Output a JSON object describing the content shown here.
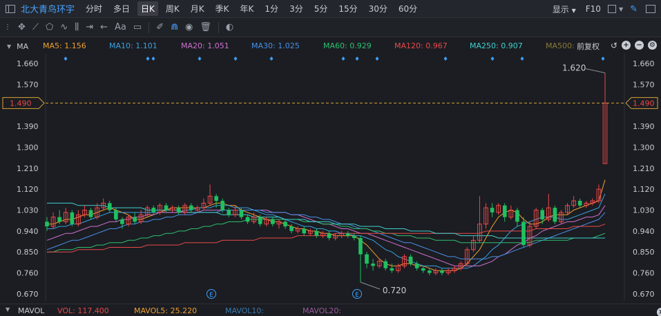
{
  "topbar": {
    "stock_name": "北大青鸟环宇",
    "periods": [
      "分时",
      "多日",
      "日K",
      "周K",
      "月K",
      "季K",
      "年K",
      "1分",
      "3分",
      "5分",
      "15分",
      "30分",
      "60分"
    ],
    "active_period": "日K",
    "display_label": "显示",
    "f10_label": "F10"
  },
  "ma_bar": {
    "title": "MA",
    "adjust_label": "前复权",
    "items": [
      {
        "label": "MA5: 1.156",
        "color": "#f0a030"
      },
      {
        "label": "MA10: 1.101",
        "color": "#3ba0e0"
      },
      {
        "label": "MA20: 1.051",
        "color": "#d070d0"
      },
      {
        "label": "MA30: 1.025",
        "color": "#4a90e8"
      },
      {
        "label": "MA60: 0.929",
        "color": "#30c070"
      },
      {
        "label": "MA120: 0.967",
        "color": "#e84a4a"
      },
      {
        "label": "MA250: 0.907",
        "color": "#40d0d0"
      },
      {
        "label": "MA500:",
        "color": "#8a7a3a"
      }
    ]
  },
  "price_axis": {
    "ticks": [
      "1.660",
      "1.570",
      "1.480",
      "1.390",
      "1.300",
      "1.210",
      "1.120",
      "1.030",
      "0.940",
      "0.850",
      "0.760",
      "0.670"
    ],
    "crosshair_label": "1.490"
  },
  "annotations": {
    "high_label": "1.620",
    "low_label": "0.720",
    "event_marker": "E"
  },
  "vol_bar": {
    "title": "MAVOL",
    "vol": "VOL: 117.400",
    "mavol5": "MAVOL5: 25.220",
    "mavol10": "MAVOL10:",
    "mavol20": "MAVOL20:"
  },
  "chart_data": {
    "type": "candlestick",
    "yrange": [
      0.64,
      1.69
    ],
    "grid": false,
    "candles": [
      [
        0.98,
        0.96,
        1.0,
        0.94
      ],
      [
        0.96,
        1.0,
        1.02,
        0.95
      ],
      [
        1.0,
        0.98,
        1.03,
        0.97
      ],
      [
        0.98,
        1.02,
        1.04,
        0.97
      ],
      [
        1.02,
        0.97,
        1.03,
        0.96
      ],
      [
        0.97,
        1.01,
        1.03,
        0.96
      ],
      [
        1.01,
        1.03,
        1.05,
        1.0
      ],
      [
        1.03,
        1.0,
        1.04,
        0.99
      ],
      [
        1.0,
        1.04,
        1.06,
        0.99
      ],
      [
        1.04,
        1.06,
        1.08,
        1.03
      ],
      [
        1.06,
        1.03,
        1.07,
        1.02
      ],
      [
        1.03,
        0.99,
        1.04,
        0.98
      ],
      [
        0.99,
        0.97,
        1.0,
        0.95
      ],
      [
        0.97,
        1.0,
        1.01,
        0.96
      ],
      [
        1.0,
        0.98,
        1.02,
        0.97
      ],
      [
        0.98,
        1.01,
        1.03,
        0.97
      ],
      [
        1.01,
        1.04,
        1.05,
        1.0
      ],
      [
        1.04,
        1.02,
        1.05,
        1.01
      ],
      [
        1.02,
        1.05,
        1.06,
        1.01
      ],
      [
        1.05,
        1.03,
        1.06,
        1.02
      ],
      [
        1.03,
        1.04,
        1.05,
        1.02
      ],
      [
        1.04,
        1.02,
        1.05,
        1.01
      ],
      [
        1.02,
        1.05,
        1.06,
        1.01
      ],
      [
        1.05,
        1.03,
        1.06,
        1.02
      ],
      [
        1.03,
        1.04,
        1.05,
        1.02
      ],
      [
        1.04,
        1.06,
        1.08,
        1.03
      ],
      [
        1.06,
        1.09,
        1.14,
        1.05
      ],
      [
        1.09,
        1.07,
        1.1,
        1.04
      ],
      [
        1.07,
        1.03,
        1.08,
        1.02
      ],
      [
        1.03,
        1.01,
        1.04,
        1.0
      ],
      [
        1.01,
        1.03,
        1.05,
        1.0
      ],
      [
        1.03,
        1.0,
        1.04,
        0.99
      ],
      [
        1.0,
        0.98,
        1.01,
        0.97
      ],
      [
        0.98,
        1.0,
        1.02,
        0.97
      ],
      [
        1.0,
        0.97,
        1.01,
        0.96
      ],
      [
        0.97,
        0.99,
        1.0,
        0.96
      ],
      [
        0.99,
        0.97,
        1.0,
        0.96
      ],
      [
        0.97,
        0.98,
        0.99,
        0.95
      ],
      [
        0.98,
        0.96,
        0.99,
        0.95
      ],
      [
        0.96,
        0.94,
        0.97,
        0.93
      ],
      [
        0.94,
        0.95,
        0.96,
        0.93
      ],
      [
        0.95,
        0.93,
        0.96,
        0.92
      ],
      [
        0.93,
        0.94,
        0.95,
        0.92
      ],
      [
        0.94,
        0.92,
        0.95,
        0.91
      ],
      [
        0.92,
        0.93,
        0.94,
        0.91
      ],
      [
        0.93,
        0.91,
        0.94,
        0.9
      ],
      [
        0.91,
        0.92,
        0.93,
        0.9
      ],
      [
        0.92,
        0.93,
        0.94,
        0.91
      ],
      [
        0.93,
        0.92,
        0.94,
        0.91
      ],
      [
        0.92,
        0.91,
        0.93,
        0.9
      ],
      [
        0.91,
        0.84,
        0.92,
        0.72
      ],
      [
        0.84,
        0.8,
        0.85,
        0.78
      ],
      [
        0.8,
        0.79,
        0.82,
        0.77
      ],
      [
        0.79,
        0.81,
        0.82,
        0.78
      ],
      [
        0.81,
        0.78,
        0.82,
        0.77
      ],
      [
        0.78,
        0.77,
        0.8,
        0.76
      ],
      [
        0.77,
        0.79,
        0.8,
        0.76
      ],
      [
        0.79,
        0.83,
        0.84,
        0.78
      ],
      [
        0.83,
        0.8,
        0.84,
        0.79
      ],
      [
        0.8,
        0.78,
        0.81,
        0.77
      ],
      [
        0.78,
        0.77,
        0.79,
        0.76
      ],
      [
        0.77,
        0.76,
        0.78,
        0.75
      ],
      [
        0.76,
        0.77,
        0.78,
        0.75
      ],
      [
        0.77,
        0.76,
        0.78,
        0.75
      ],
      [
        0.76,
        0.77,
        0.78,
        0.75
      ],
      [
        0.77,
        0.78,
        0.79,
        0.76
      ],
      [
        0.78,
        0.8,
        0.81,
        0.77
      ],
      [
        0.8,
        0.86,
        0.87,
        0.79
      ],
      [
        0.86,
        0.9,
        0.92,
        0.85
      ],
      [
        0.9,
        0.97,
        1.09,
        0.89
      ],
      [
        0.97,
        1.04,
        1.06,
        0.95
      ],
      [
        1.04,
        1.02,
        1.06,
        1.0
      ],
      [
        1.02,
        1.05,
        1.06,
        1.01
      ],
      [
        1.05,
        1.0,
        1.06,
        0.98
      ],
      [
        1.0,
        1.03,
        1.05,
        0.99
      ],
      [
        1.03,
        0.98,
        1.04,
        0.96
      ],
      [
        0.98,
        0.88,
        1.0,
        0.87
      ],
      [
        0.88,
        0.96,
        0.98,
        0.87
      ],
      [
        0.96,
        1.03,
        1.04,
        0.95
      ],
      [
        1.03,
        0.99,
        1.04,
        0.97
      ],
      [
        0.99,
        1.04,
        1.1,
        0.98
      ],
      [
        1.04,
        0.98,
        1.05,
        0.97
      ],
      [
        0.98,
        1.02,
        1.03,
        0.97
      ],
      [
        1.02,
        1.05,
        1.06,
        1.01
      ],
      [
        1.05,
        1.07,
        1.09,
        1.04
      ],
      [
        1.07,
        1.05,
        1.08,
        1.04
      ],
      [
        1.05,
        1.06,
        1.07,
        1.04
      ],
      [
        1.06,
        1.07,
        1.08,
        1.05
      ],
      [
        1.07,
        1.12,
        1.14,
        1.06
      ],
      [
        1.23,
        1.49,
        1.62,
        1.23
      ]
    ],
    "ma_lines": [
      {
        "name": "MA5",
        "color": "#f0a030",
        "values": [
          0.97,
          0.97,
          0.98,
          0.99,
          0.99,
          1.0,
          1.01,
          1.01,
          1.02,
          1.03,
          1.04,
          1.03,
          1.02,
          1.01,
          0.99,
          0.99,
          1.0,
          1.01,
          1.02,
          1.03,
          1.04,
          1.04,
          1.04,
          1.04,
          1.04,
          1.04,
          1.05,
          1.06,
          1.06,
          1.05,
          1.05,
          1.03,
          1.02,
          1.01,
          1.0,
          0.99,
          0.98,
          0.98,
          0.97,
          0.96,
          0.95,
          0.95,
          0.94,
          0.94,
          0.93,
          0.93,
          0.92,
          0.92,
          0.92,
          0.92,
          0.9,
          0.88,
          0.85,
          0.82,
          0.8,
          0.79,
          0.79,
          0.8,
          0.8,
          0.79,
          0.79,
          0.78,
          0.77,
          0.77,
          0.77,
          0.77,
          0.78,
          0.8,
          0.83,
          0.86,
          0.91,
          0.96,
          1.0,
          1.02,
          1.03,
          1.02,
          0.99,
          0.97,
          0.97,
          0.98,
          1.0,
          1.01,
          1.01,
          1.01,
          1.03,
          1.04,
          1.05,
          1.06,
          1.07,
          1.16
        ]
      },
      {
        "name": "MA10",
        "color": "#3ba0e0",
        "values": [
          0.95,
          0.95,
          0.96,
          0.96,
          0.97,
          0.97,
          0.98,
          0.99,
          1.0,
          1.01,
          1.02,
          1.02,
          1.02,
          1.02,
          1.02,
          1.02,
          1.02,
          1.02,
          1.02,
          1.02,
          1.02,
          1.02,
          1.03,
          1.03,
          1.04,
          1.04,
          1.04,
          1.05,
          1.05,
          1.05,
          1.04,
          1.04,
          1.04,
          1.03,
          1.02,
          1.01,
          1.01,
          1.0,
          0.99,
          0.98,
          0.97,
          0.96,
          0.96,
          0.95,
          0.95,
          0.94,
          0.94,
          0.93,
          0.93,
          0.92,
          0.92,
          0.91,
          0.9,
          0.88,
          0.86,
          0.85,
          0.83,
          0.82,
          0.81,
          0.8,
          0.79,
          0.79,
          0.79,
          0.78,
          0.78,
          0.78,
          0.78,
          0.78,
          0.79,
          0.81,
          0.83,
          0.86,
          0.88,
          0.91,
          0.94,
          0.96,
          0.97,
          0.98,
          0.99,
          1.0,
          1.0,
          1.0,
          0.99,
          0.99,
          1.0,
          1.01,
          1.02,
          1.03,
          1.04,
          1.1
        ]
      },
      {
        "name": "MA20",
        "color": "#d070d0",
        "values": [
          0.9,
          0.91,
          0.92,
          0.93,
          0.93,
          0.94,
          0.95,
          0.96,
          0.96,
          0.97,
          0.98,
          0.98,
          0.99,
          0.99,
          1.0,
          1.0,
          1.01,
          1.01,
          1.02,
          1.02,
          1.02,
          1.02,
          1.02,
          1.02,
          1.02,
          1.03,
          1.03,
          1.03,
          1.03,
          1.03,
          1.03,
          1.03,
          1.03,
          1.03,
          1.03,
          1.03,
          1.02,
          1.02,
          1.02,
          1.01,
          1.01,
          1.0,
          0.99,
          0.98,
          0.97,
          0.97,
          0.96,
          0.95,
          0.95,
          0.94,
          0.93,
          0.93,
          0.92,
          0.91,
          0.9,
          0.89,
          0.88,
          0.87,
          0.86,
          0.85,
          0.84,
          0.83,
          0.82,
          0.81,
          0.8,
          0.79,
          0.79,
          0.79,
          0.79,
          0.79,
          0.8,
          0.81,
          0.83,
          0.84,
          0.86,
          0.88,
          0.89,
          0.91,
          0.92,
          0.94,
          0.95,
          0.96,
          0.97,
          0.98,
          0.98,
          0.99,
          1.0,
          1.0,
          1.01,
          1.05
        ]
      },
      {
        "name": "MA30",
        "color": "#4a90e8",
        "values": [
          0.86,
          0.87,
          0.88,
          0.89,
          0.9,
          0.9,
          0.91,
          0.92,
          0.93,
          0.94,
          0.95,
          0.95,
          0.96,
          0.97,
          0.97,
          0.98,
          0.98,
          0.99,
          0.99,
          1.0,
          1.0,
          1.01,
          1.01,
          1.01,
          1.02,
          1.02,
          1.02,
          1.02,
          1.03,
          1.03,
          1.03,
          1.03,
          1.03,
          1.03,
          1.03,
          1.02,
          1.02,
          1.02,
          1.02,
          1.01,
          1.01,
          1.01,
          1.0,
          1.0,
          0.99,
          0.99,
          0.98,
          0.97,
          0.97,
          0.96,
          0.95,
          0.95,
          0.94,
          0.93,
          0.92,
          0.91,
          0.9,
          0.89,
          0.89,
          0.88,
          0.87,
          0.86,
          0.85,
          0.84,
          0.83,
          0.83,
          0.82,
          0.82,
          0.82,
          0.82,
          0.82,
          0.83,
          0.83,
          0.84,
          0.85,
          0.86,
          0.87,
          0.88,
          0.89,
          0.9,
          0.91,
          0.92,
          0.93,
          0.94,
          0.95,
          0.96,
          0.97,
          0.98,
          0.99,
          1.02
        ]
      },
      {
        "name": "MA60",
        "color": "#30c070",
        "values": [
          0.85,
          0.85,
          0.86,
          0.86,
          0.86,
          0.87,
          0.87,
          0.87,
          0.88,
          0.88,
          0.89,
          0.89,
          0.89,
          0.9,
          0.9,
          0.91,
          0.91,
          0.92,
          0.92,
          0.93,
          0.93,
          0.94,
          0.94,
          0.95,
          0.95,
          0.96,
          0.96,
          0.97,
          0.97,
          0.98,
          0.98,
          0.98,
          0.99,
          0.99,
          0.99,
          0.99,
          0.99,
          0.99,
          0.99,
          0.99,
          0.99,
          0.98,
          0.98,
          0.98,
          0.97,
          0.97,
          0.97,
          0.96,
          0.96,
          0.95,
          0.95,
          0.95,
          0.94,
          0.94,
          0.93,
          0.93,
          0.92,
          0.92,
          0.92,
          0.91,
          0.91,
          0.91,
          0.9,
          0.9,
          0.9,
          0.9,
          0.89,
          0.89,
          0.89,
          0.89,
          0.89,
          0.89,
          0.89,
          0.89,
          0.89,
          0.89,
          0.89,
          0.89,
          0.9,
          0.9,
          0.9,
          0.9,
          0.9,
          0.9,
          0.91,
          0.91,
          0.91,
          0.91,
          0.92,
          0.93
        ]
      },
      {
        "name": "MA120",
        "color": "#e84a4a",
        "values": [
          0.85,
          0.85,
          0.85,
          0.85,
          0.85,
          0.86,
          0.86,
          0.86,
          0.86,
          0.86,
          0.87,
          0.87,
          0.87,
          0.87,
          0.87,
          0.87,
          0.88,
          0.88,
          0.88,
          0.88,
          0.88,
          0.88,
          0.89,
          0.89,
          0.89,
          0.89,
          0.89,
          0.89,
          0.9,
          0.9,
          0.9,
          0.9,
          0.9,
          0.9,
          0.91,
          0.91,
          0.91,
          0.91,
          0.91,
          0.91,
          0.92,
          0.92,
          0.92,
          0.92,
          0.92,
          0.92,
          0.93,
          0.93,
          0.93,
          0.93,
          0.93,
          0.93,
          0.93,
          0.93,
          0.93,
          0.93,
          0.93,
          0.93,
          0.93,
          0.93,
          0.93,
          0.93,
          0.93,
          0.93,
          0.93,
          0.93,
          0.93,
          0.93,
          0.93,
          0.93,
          0.94,
          0.94,
          0.94,
          0.94,
          0.94,
          0.94,
          0.94,
          0.94,
          0.95,
          0.95,
          0.95,
          0.95,
          0.95,
          0.95,
          0.96,
          0.96,
          0.96,
          0.96,
          0.96,
          0.97
        ]
      },
      {
        "name": "MA250",
        "color": "#40d0d0",
        "values": [
          1.06,
          1.06,
          1.06,
          1.06,
          1.06,
          1.05,
          1.05,
          1.05,
          1.05,
          1.05,
          1.04,
          1.04,
          1.04,
          1.04,
          1.04,
          1.04,
          1.03,
          1.03,
          1.03,
          1.03,
          1.03,
          1.03,
          1.02,
          1.02,
          1.02,
          1.02,
          1.02,
          1.02,
          1.01,
          1.01,
          1.01,
          1.01,
          1.01,
          1.0,
          1.0,
          1.0,
          1.0,
          1.0,
          0.99,
          0.99,
          0.99,
          0.99,
          0.98,
          0.98,
          0.98,
          0.98,
          0.97,
          0.97,
          0.97,
          0.97,
          0.96,
          0.96,
          0.96,
          0.96,
          0.95,
          0.95,
          0.95,
          0.95,
          0.94,
          0.94,
          0.94,
          0.94,
          0.93,
          0.93,
          0.93,
          0.93,
          0.92,
          0.92,
          0.92,
          0.92,
          0.92,
          0.92,
          0.91,
          0.91,
          0.91,
          0.91,
          0.91,
          0.91,
          0.91,
          0.91,
          0.91,
          0.91,
          0.91,
          0.91,
          0.91,
          0.91,
          0.91,
          0.91,
          0.91,
          0.91
        ]
      }
    ]
  }
}
